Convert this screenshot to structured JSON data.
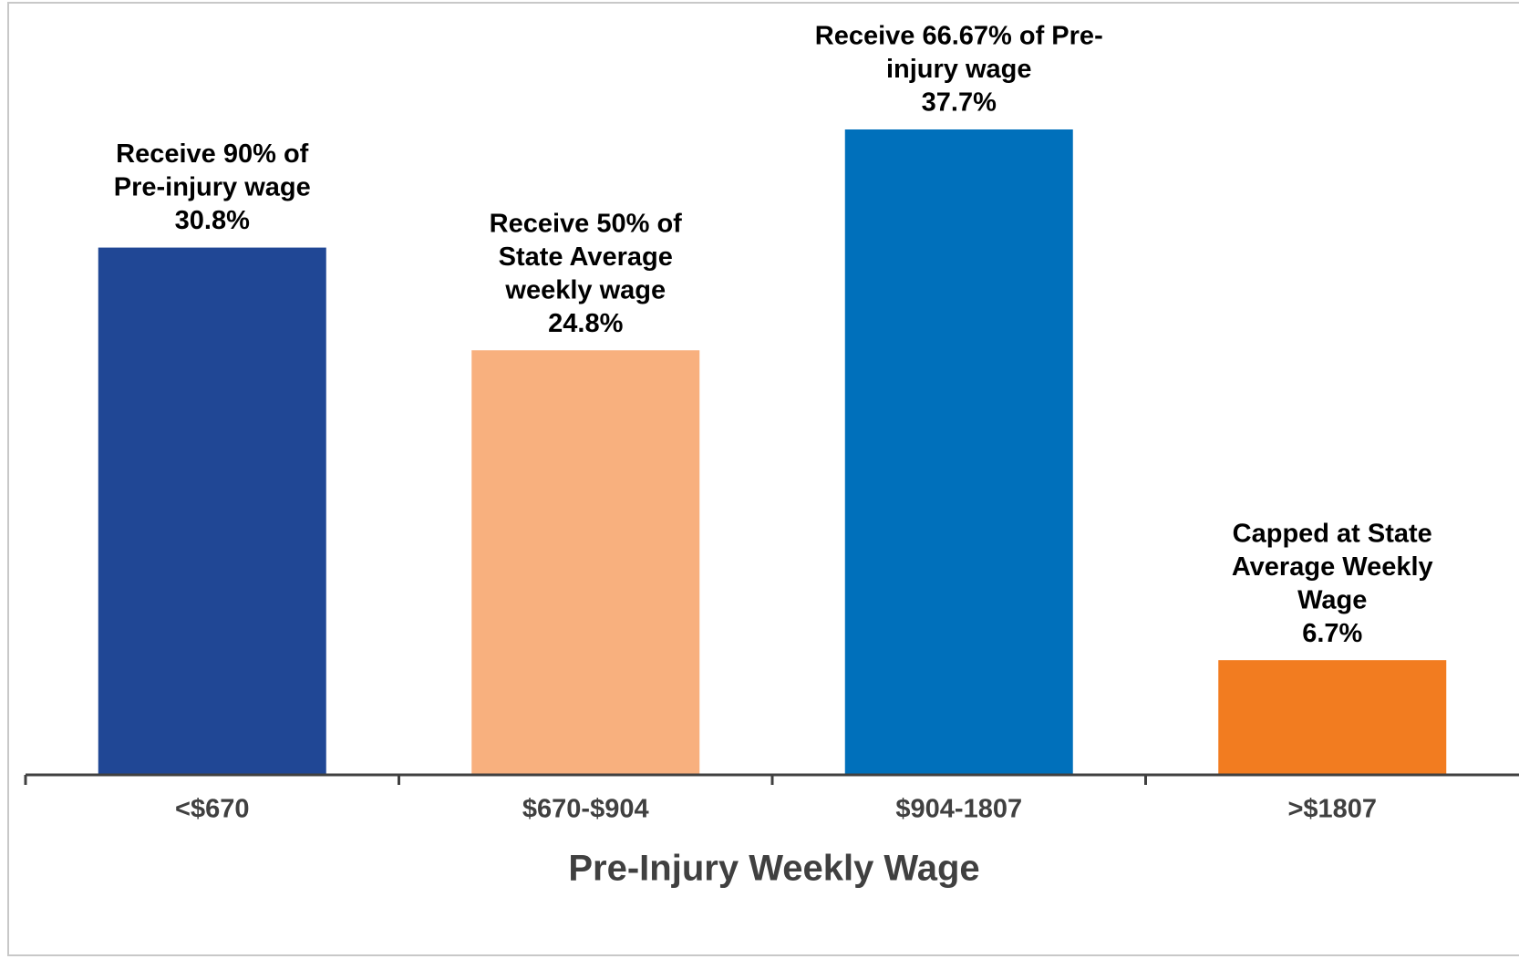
{
  "chart_data": {
    "type": "bar",
    "x_label": "Pre-Injury Weekly Wage",
    "categories": [
      "<$670",
      "$670-$904",
      "$904-1807",
      ">$1807"
    ],
    "values": [
      30.8,
      24.8,
      37.7,
      6.7
    ],
    "value_labels": [
      "30.8%",
      "24.8%",
      "37.7%",
      "6.7%"
    ],
    "colors": [
      "#204795",
      "#f8b07e",
      "#0070bb",
      "#f27c20"
    ],
    "annotations": [
      [
        "Receive 90% of",
        "Pre-injury wage"
      ],
      [
        "Receive 50% of",
        "State Average",
        "weekly wage"
      ],
      [
        "Receive 66.67% of Pre-",
        "injury wage"
      ],
      [
        "Capped at State",
        "Average Weekly",
        "Wage"
      ]
    ]
  }
}
